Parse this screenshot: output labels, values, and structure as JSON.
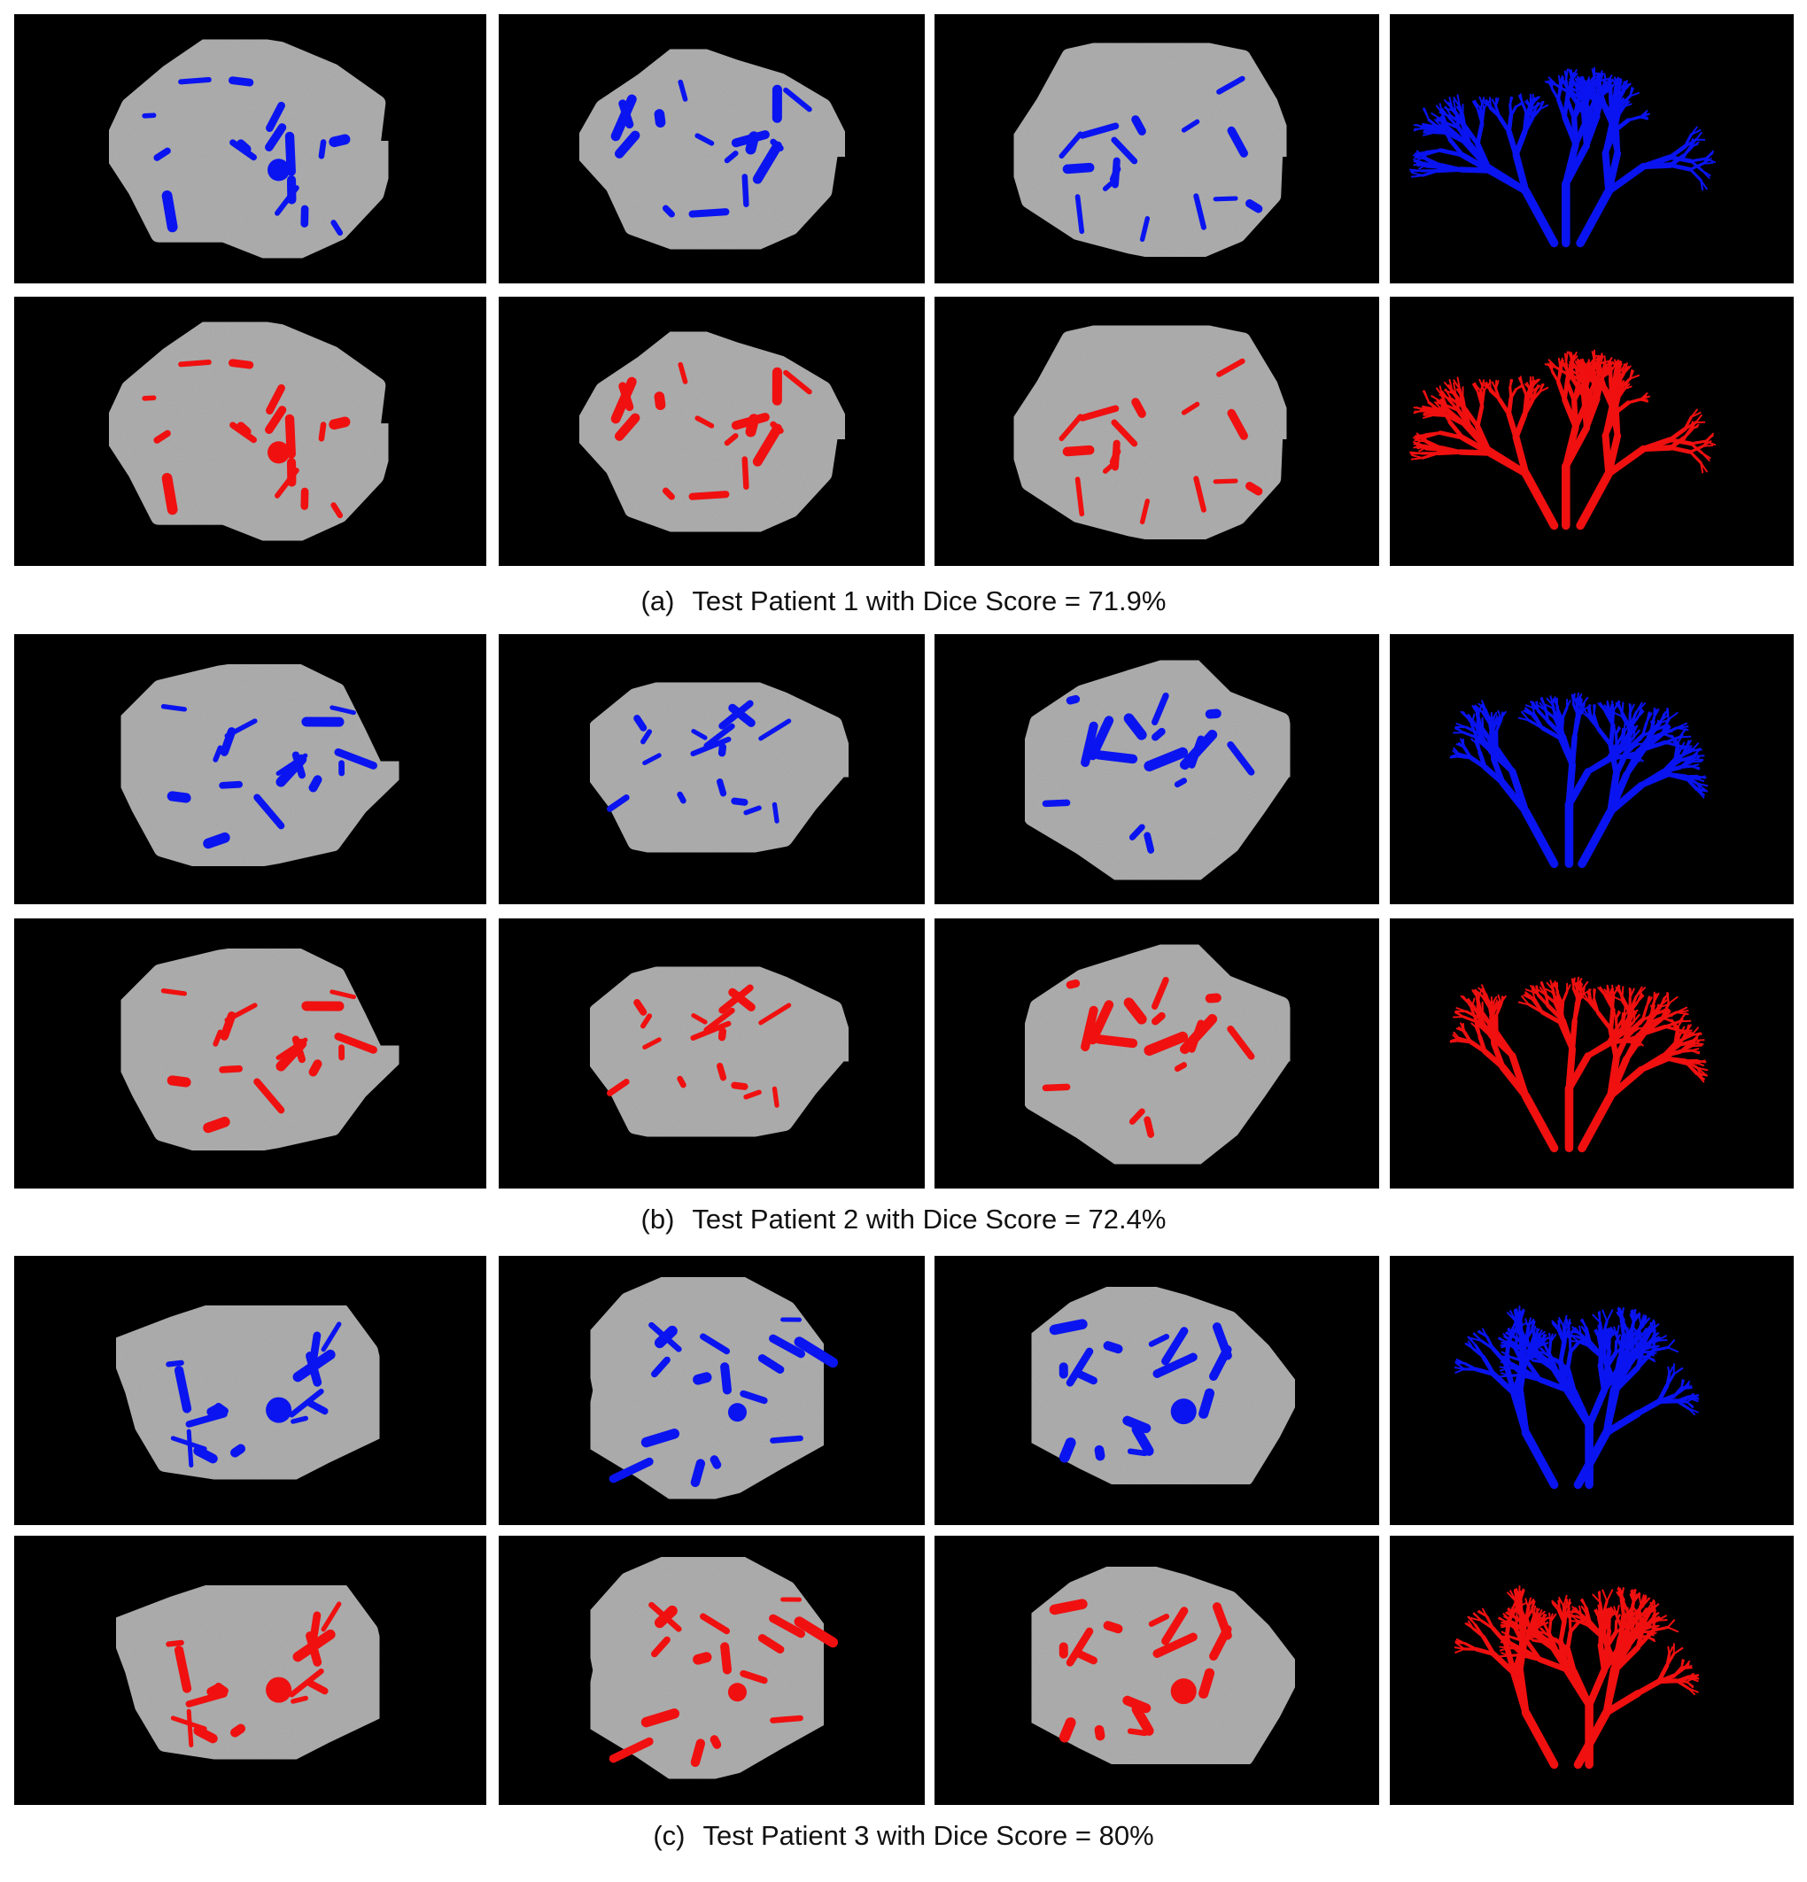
{
  "panels": [
    {
      "label": "(a)",
      "caption": "Test Patient 1 with Dice Score = 71.9%"
    },
    {
      "label": "(b)",
      "caption": "Test Patient 2 with Dice Score = 72.4%"
    },
    {
      "label": "(c)",
      "caption": "Test Patient 3 with Dice Score = 80%"
    }
  ]
}
